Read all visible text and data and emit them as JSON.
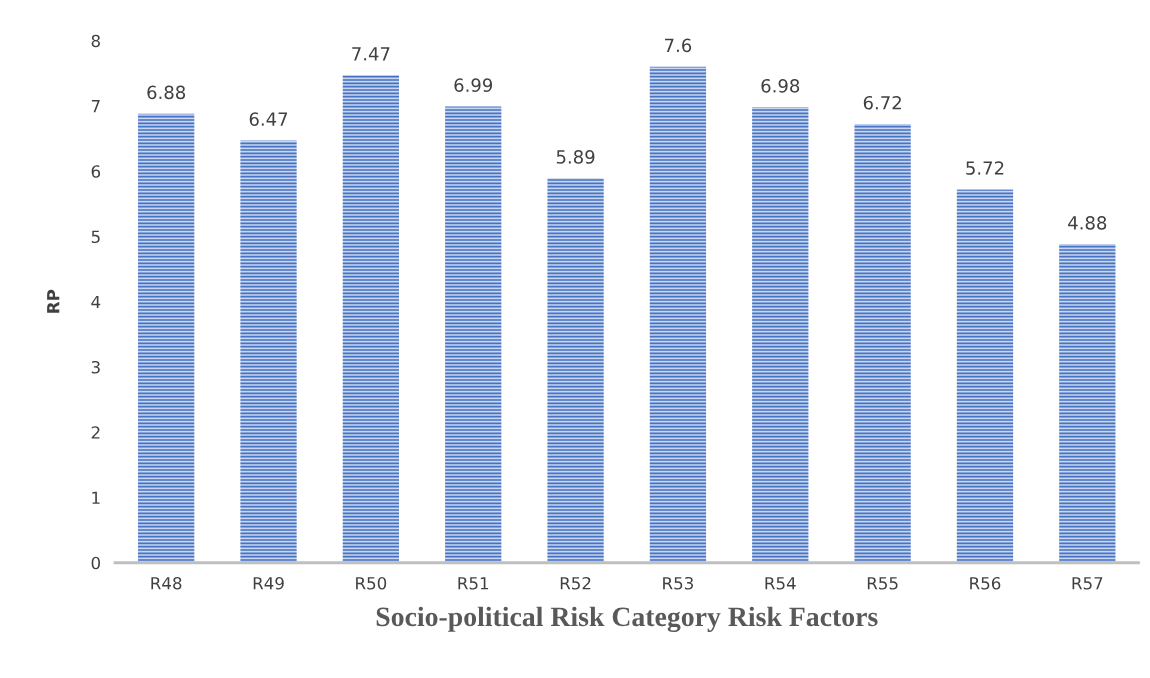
{
  "chart_data": {
    "type": "bar",
    "xlabel": "Socio-political Risk Category Risk Factors",
    "ylabel": "RP",
    "categories": [
      "R48",
      "R49",
      "R50",
      "R51",
      "R52",
      "R53",
      "R54",
      "R55",
      "R56",
      "R57"
    ],
    "values": [
      6.88,
      6.47,
      7.47,
      6.99,
      5.89,
      7.6,
      6.98,
      6.72,
      5.72,
      4.88
    ],
    "color": "#4472c4",
    "ylim": [
      0,
      8
    ],
    "yticks": [
      0,
      1,
      2,
      3,
      4,
      5,
      6,
      7,
      8
    ],
    "grid": false,
    "data_labels": true
  }
}
